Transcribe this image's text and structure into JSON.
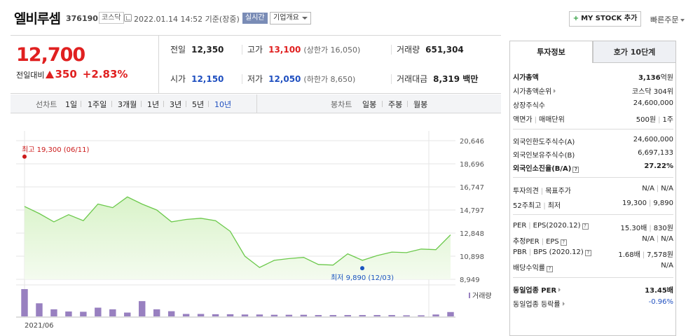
{
  "header": {
    "name": "엘비루셈",
    "code": "376190",
    "market": "코스닥",
    "timestamp": "2022.01.14 14:52 기준(장중)",
    "realtime": "실시간",
    "company_select": "기업개요",
    "mystock_plus": "+",
    "mystock_label": "MY STOCK 추가",
    "quick_order": "빠른주문"
  },
  "price": {
    "current": "12,700",
    "change_label": "전일대비",
    "change_amount": "350",
    "change_pct": "+2.83%"
  },
  "quote": {
    "prev_close": {
      "k": "전일",
      "v": "12,350"
    },
    "high": {
      "k": "고가",
      "v": "13,100",
      "sub": "(상한가 16,050)"
    },
    "volume": {
      "k": "거래량",
      "v": "651,304"
    },
    "open": {
      "k": "시가",
      "v": "12,150"
    },
    "low": {
      "k": "저가",
      "v": "12,050",
      "sub": "(하한가 8,650)"
    },
    "amount": {
      "k": "거래대금",
      "v": "8,319 백만"
    }
  },
  "range_bar": {
    "line_chart_label": "선차트",
    "ranges": [
      "1일",
      "1주일",
      "3개월",
      "1년",
      "3년",
      "5년",
      "10년"
    ],
    "active_range": "10년",
    "candle_chart_label": "봉차트",
    "candles": [
      "일봉",
      "주봉",
      "월봉"
    ]
  },
  "chart_data": {
    "type": "area",
    "x_tick_labels": [
      "2021/06"
    ],
    "y_ticks": [
      20646,
      18696,
      16747,
      14797,
      12848,
      10898,
      8949
    ],
    "ylim": [
      8949,
      20646
    ],
    "values": [
      15100,
      14500,
      13800,
      14400,
      13900,
      15300,
      15000,
      15900,
      15300,
      14800,
      13800,
      14000,
      14100,
      13900,
      13000,
      10900,
      9950,
      10550,
      10700,
      10800,
      10200,
      10150,
      11100,
      10550,
      10950,
      11250,
      11200,
      11500,
      11450,
      12700
    ],
    "high_annotation": "최고 19,300 (06/11)",
    "high_value": 19300,
    "low_annotation": "최저 9,890 (12/03)",
    "low_value": 9890,
    "volume_legend": "거래량",
    "volume_values": [
      100,
      48,
      26,
      18,
      17,
      32,
      26,
      14,
      56,
      26,
      19,
      9,
      9,
      8,
      8,
      7,
      7,
      6,
      6,
      6,
      5,
      5,
      5,
      5,
      5,
      5,
      4,
      4,
      7,
      16
    ],
    "colors": {
      "line": "#6cc94c",
      "fill_top": "#d9f3c9",
      "fill_bottom": "#f4fbef",
      "volume": "#9880c0",
      "high": "#cc1a1a",
      "low": "#1a54c0"
    }
  },
  "tabs": {
    "active": "투자정보",
    "inactive": "호가 10단계"
  },
  "info": {
    "market_cap": {
      "k": "시가총액",
      "v_num": "3,136",
      "v_unit": "억원"
    },
    "market_cap_rank": {
      "k": "시가총액순위",
      "v": "코스닥 304위"
    },
    "shares": {
      "k": "상장주식수",
      "v": "24,600,000"
    },
    "face_value": {
      "k1": "액면가",
      "k2": "매매단위",
      "v1": "500원",
      "v2": "1주"
    },
    "foreign_limit": {
      "k": "외국인한도주식수(A)",
      "v": "24,600,000"
    },
    "foreign_hold": {
      "k": "외국인보유주식수(B)",
      "v": "6,697,133"
    },
    "foreign_ratio": {
      "k": "외국인소진율(B/A)",
      "v": "27.22%"
    },
    "opinion": {
      "k1": "투자의견",
      "k2": "목표주가",
      "v1": "N/A",
      "v2": "N/A"
    },
    "week52": {
      "k1": "52주최고",
      "k2": "최저",
      "v1": "19,300",
      "v2": "9,890"
    },
    "per_eps": {
      "k1": "PER",
      "k2": "EPS(2020.12)",
      "v1": "15.30배",
      "v2": "830원"
    },
    "est_per": {
      "k1": "추정PER",
      "k2": "EPS",
      "v1": "N/A",
      "v2": "N/A"
    },
    "pbr_bps": {
      "k1": "PBR",
      "k2": "BPS (2020.12)",
      "v1": "1.68배",
      "v2": "7,578원"
    },
    "dividend": {
      "k": "배당수익률",
      "v": "N/A"
    },
    "sector_per": {
      "k": "동일업종 PER",
      "v": "13.45배"
    },
    "sector_rate": {
      "k": "동일업종 등락률",
      "v": "-0.96%"
    }
  }
}
